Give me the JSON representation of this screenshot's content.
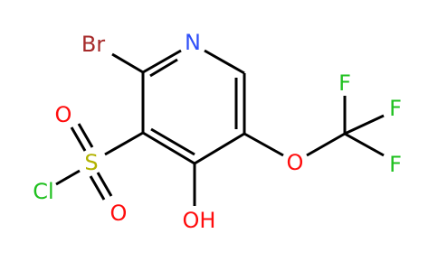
{
  "atoms": [
    "N",
    "Br",
    "S",
    "O",
    "O",
    "Cl",
    "OH",
    "O",
    "F",
    "F",
    "F"
  ]
}
